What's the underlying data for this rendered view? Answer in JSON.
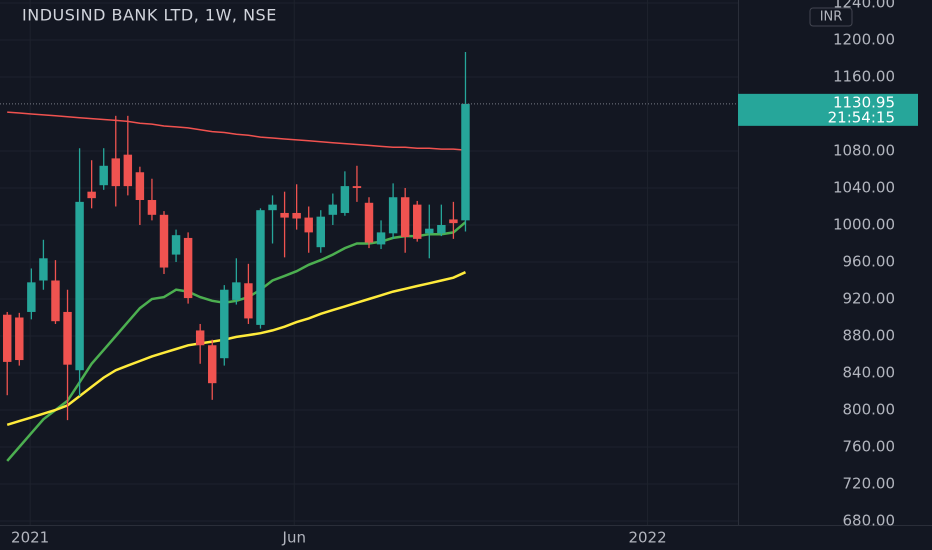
{
  "chart_data": {
    "type": "candlestick",
    "title": "INDUSIND BANK LTD, 1W, NSE",
    "currency": "INR",
    "countdown": "21:54:15",
    "up_color": "#26a69a",
    "down_color": "#ef5350",
    "open": [
      903,
      900,
      906,
      940,
      940,
      906,
      843,
      1036,
      1043,
      1072,
      1076,
      1057,
      1027,
      1011,
      968,
      986,
      886,
      870,
      856,
      919,
      937,
      892,
      1016,
      1013,
      1013,
      1008,
      976,
      1011,
      1013,
      1042,
      1024,
      979,
      991,
      1030,
      1022,
      991,
      991,
      1006,
      1005
    ],
    "high": [
      906,
      905,
      953,
      984,
      962,
      930,
      1083,
      1070,
      1083,
      1118,
      1118,
      1063,
      1050,
      1015,
      995,
      992,
      893,
      876,
      935,
      964,
      958,
      1018,
      1032,
      1036,
      1044,
      1020,
      1016,
      1034,
      1058,
      1064,
      1030,
      1005,
      1045,
      1040,
      1026,
      1022,
      1022,
      1025,
      1187
    ],
    "low": [
      816,
      848,
      898,
      930,
      893,
      789,
      815,
      1018,
      1038,
      1020,
      1032,
      1000,
      1005,
      947,
      960,
      915,
      850,
      811,
      848,
      914,
      893,
      888,
      980,
      965,
      995,
      970,
      970,
      1000,
      1010,
      1025,
      975,
      974,
      985,
      970,
      982,
      964,
      988,
      985,
      993
    ],
    "close": [
      852,
      854,
      938,
      964,
      896,
      849,
      1025,
      1029,
      1064,
      1042,
      1042,
      1027,
      1011,
      954,
      989,
      921,
      870,
      829,
      930,
      938,
      899,
      1016,
      1022,
      1008,
      1007,
      992,
      1009,
      1022,
      1042,
      1040,
      981,
      992,
      1030,
      987,
      985,
      996,
      1000,
      1002,
      1130.95
    ],
    "overlays": [
      {
        "color": "#f0524f",
        "values": [
          1122,
          1121,
          1120,
          1119,
          1118,
          1117,
          1116,
          1115,
          1114,
          1113,
          1112,
          1110,
          1109,
          1107,
          1106,
          1105,
          1103,
          1101,
          1100,
          1098,
          1097,
          1095,
          1094,
          1093,
          1092,
          1091,
          1090,
          1089,
          1088,
          1087,
          1086,
          1085,
          1084,
          1084,
          1083,
          1083,
          1082,
          1082,
          1081
        ]
      },
      {
        "color": "#4caf50",
        "values": [
          745,
          760,
          775,
          790,
          800,
          810,
          830,
          850,
          865,
          880,
          895,
          910,
          920,
          922,
          930,
          928,
          922,
          918,
          916,
          918,
          922,
          930,
          940,
          945,
          950,
          957,
          962,
          968,
          975,
          980,
          980,
          982,
          986,
          988,
          988,
          990,
          990,
          992,
          1003
        ]
      },
      {
        "color": "#ffeb3b",
        "values": [
          784,
          788,
          792,
          796,
          800,
          805,
          815,
          825,
          835,
          843,
          848,
          853,
          858,
          862,
          866,
          870,
          872,
          874,
          876,
          879,
          881,
          883,
          886,
          890,
          895,
          899,
          904,
          908,
          912,
          916,
          920,
          924,
          928,
          931,
          934,
          937,
          940,
          943,
          949
        ]
      }
    ],
    "xlim": [
      -0.6,
      60.6
    ],
    "xticks": [
      {
        "value": 1.9,
        "label": "2021"
      },
      {
        "value": 23.8,
        "label": "Jun"
      },
      {
        "value": 53.1,
        "label": "2022"
      }
    ],
    "ylim": [
      675.7,
      1243.2
    ],
    "yticks": [
      {
        "value": 680,
        "label": "680.00"
      },
      {
        "value": 720,
        "label": "720.00"
      },
      {
        "value": 760,
        "label": "760.00"
      },
      {
        "value": 800,
        "label": "800.00"
      },
      {
        "value": 840,
        "label": "840.00"
      },
      {
        "value": 880,
        "label": "880.00"
      },
      {
        "value": 920,
        "label": "920.00"
      },
      {
        "value": 960,
        "label": "960.00"
      },
      {
        "value": 1000,
        "label": "1000.00"
      },
      {
        "value": 1040,
        "label": "1040.00"
      },
      {
        "value": 1080,
        "label": "1080.00"
      },
      {
        "value": 1160,
        "label": "1160.00"
      },
      {
        "value": 1200,
        "label": "1200.00"
      },
      {
        "value": 1240,
        "label": "1240.00"
      }
    ],
    "grid": true
  }
}
